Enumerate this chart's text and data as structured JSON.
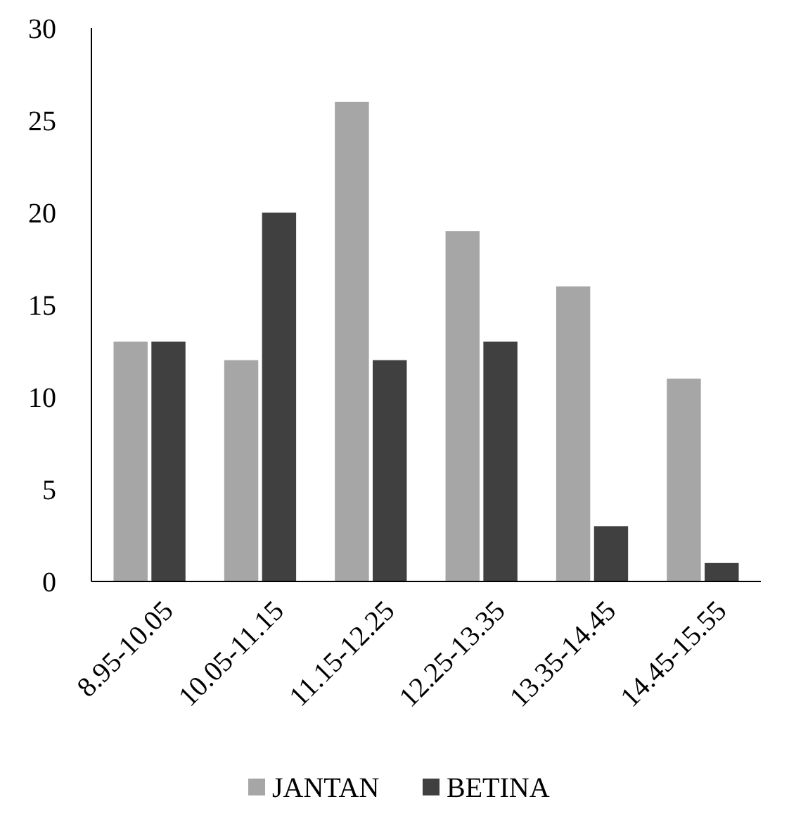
{
  "chart_data": {
    "type": "bar",
    "categories": [
      "8.95-10.05",
      "10.05-11.15",
      "11.15-12.25",
      "12.25-13.35",
      "13.35-14.45",
      "14.45-15.55"
    ],
    "series": [
      {
        "name": "JANTAN",
        "color": "#a6a6a6",
        "values": [
          13,
          12,
          26,
          19,
          16,
          11
        ]
      },
      {
        "name": "BETINA",
        "color": "#404040",
        "values": [
          13,
          20,
          12,
          13,
          3,
          1
        ]
      }
    ],
    "ylim": [
      0,
      30
    ],
    "yticks": [
      0,
      5,
      10,
      15,
      20,
      25,
      30
    ],
    "grid": false,
    "legend": "bottom"
  }
}
